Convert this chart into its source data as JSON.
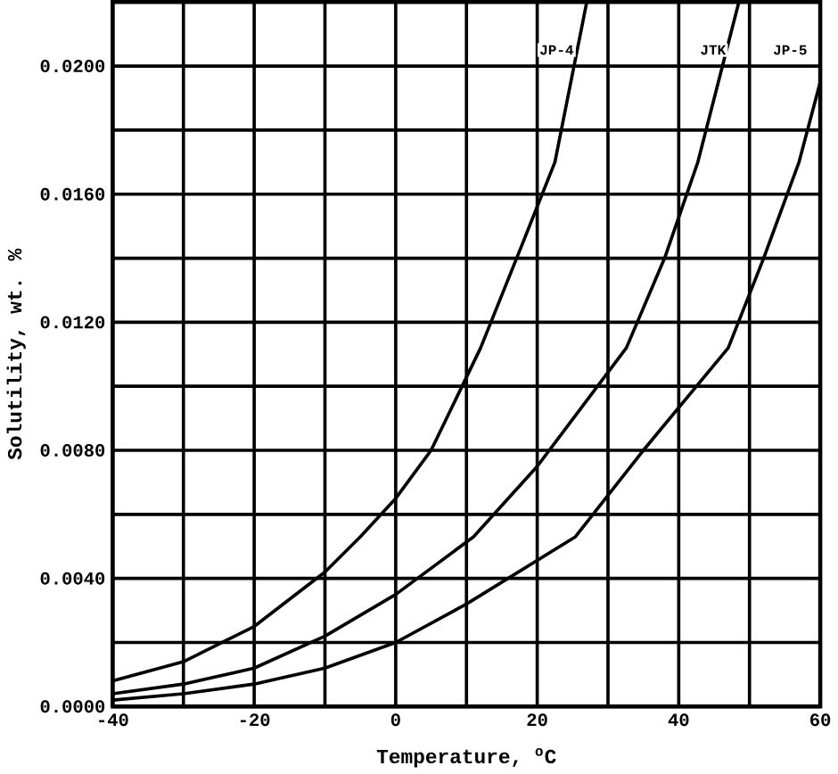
{
  "chart_data": {
    "type": "line",
    "xlabel": "Temperature, $^{o}$C",
    "ylabel": "Solutility, wt. %",
    "xlim": [
      -40,
      60
    ],
    "ylim": [
      0,
      0.022
    ],
    "xticks": [
      -40,
      {
        "value": -30,
        "label": null
      },
      -20,
      {
        "value": -10,
        "label": null
      },
      0,
      {
        "value": 10,
        "label": null
      },
      20,
      {
        "value": 30,
        "label": null
      },
      40,
      {
        "value": 50,
        "label": null
      },
      60
    ],
    "yticks": [
      {
        "value": 0,
        "label": "0.0000"
      },
      {
        "value": 0.002,
        "label": null
      },
      {
        "value": 0.004,
        "label": "0.0040"
      },
      {
        "value": 0.006,
        "label": null
      },
      {
        "value": 0.008,
        "label": "0.0080"
      },
      {
        "value": 0.01,
        "label": null
      },
      {
        "value": 0.012,
        "label": "0.0120"
      },
      {
        "value": 0.014,
        "label": null
      },
      {
        "value": 0.016,
        "label": "0.0160"
      },
      {
        "value": 0.018,
        "label": null
      },
      {
        "value": 0.02,
        "label": "0.0200"
      }
    ],
    "grid": true,
    "marker": "none",
    "line_style": "solid",
    "series": [
      {
        "name": "JP-4",
        "color": "#000000",
        "x": [
          -40,
          -30,
          -20,
          -10,
          -5,
          0,
          5,
          12,
          18,
          22.5,
          27
        ],
        "values": [
          0.0008,
          0.0014,
          0.0025,
          0.0042,
          0.0053,
          0.0065,
          0.008,
          0.0112,
          0.0145,
          0.017,
          0.022
        ]
      },
      {
        "name": "JTK",
        "color": "#000000",
        "x": [
          -40,
          -30,
          -20,
          -10,
          0,
          11,
          20,
          32.6,
          38,
          42.7,
          48.5
        ],
        "values": [
          0.0004,
          0.0007,
          0.0012,
          0.0022,
          0.0035,
          0.0053,
          0.0075,
          0.0112,
          0.014,
          0.017,
          0.022
        ]
      },
      {
        "name": "JP-5",
        "color": "#000000",
        "x": [
          -40,
          -30,
          -20,
          -10,
          0,
          10,
          25.4,
          35,
          47,
          52,
          57,
          60
        ],
        "values": [
          0.0002,
          0.0004,
          0.0007,
          0.0012,
          0.002,
          0.0032,
          0.0053,
          0.008,
          0.0112,
          0.014,
          0.017,
          0.0195
        ]
      }
    ]
  }
}
